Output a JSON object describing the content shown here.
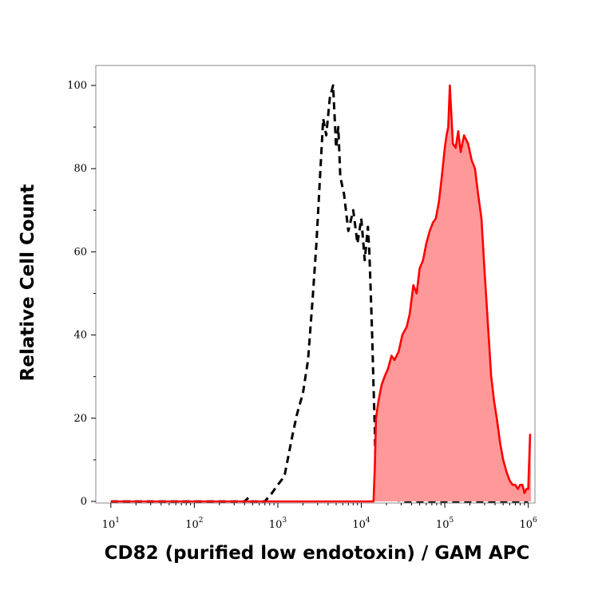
{
  "chart_data": {
    "type": "area",
    "title": "",
    "xlabel": "CD82 (purified low endotoxin) / GAM APC",
    "ylabel": "Relative Cell Count",
    "x_scale": "log",
    "xlim": [
      10,
      1000000
    ],
    "ylim": [
      0,
      100
    ],
    "grid": false,
    "legend": "none",
    "y_ticks": [
      {
        "value": 0,
        "label": "0"
      },
      {
        "value": 20,
        "label": "20"
      },
      {
        "value": 40,
        "label": "40"
      },
      {
        "value": 60,
        "label": "60"
      },
      {
        "value": 80,
        "label": "80"
      },
      {
        "value": 100,
        "label": "100"
      }
    ],
    "x_ticks": [
      {
        "value": 10,
        "base": "10",
        "exp": "1"
      },
      {
        "value": 100,
        "base": "10",
        "exp": "2"
      },
      {
        "value": 1000,
        "base": "10",
        "exp": "3"
      },
      {
        "value": 10000,
        "base": "10",
        "exp": "4"
      },
      {
        "value": 100000,
        "base": "10",
        "exp": "5"
      },
      {
        "value": 1000000,
        "base": "10",
        "exp": "6"
      }
    ],
    "series": [
      {
        "style": "dashed",
        "color": "#000000",
        "fill": "none",
        "x": [
          10,
          400,
          450,
          480,
          700,
          850,
          1000,
          1200,
          1500,
          1700,
          2000,
          2300,
          2600,
          2900,
          3200,
          3500,
          3800,
          4200,
          4600,
          5000,
          5300,
          5600,
          6200,
          7000,
          8000,
          9000,
          10000,
          11000,
          12000,
          12500,
          13000,
          13500,
          14000,
          14500,
          15000,
          30000,
          100000,
          1000000
        ],
        "y": [
          0,
          0,
          1,
          0,
          0,
          2,
          4,
          6,
          16,
          21,
          26,
          34,
          48,
          62,
          78,
          92,
          88,
          97,
          100,
          85,
          90,
          78,
          74,
          65,
          70,
          62,
          68,
          58,
          66,
          60,
          50,
          40,
          28,
          18,
          2,
          0,
          0,
          0
        ]
      },
      {
        "style": "solid",
        "color": "#ff0000",
        "fill": "#ff9999",
        "x": [
          10,
          14000,
          14500,
          15000,
          16000,
          17500,
          19000,
          21000,
          23000,
          25000,
          28000,
          31000,
          35000,
          38000,
          42000,
          46000,
          50000,
          55000,
          60000,
          66000,
          72000,
          78000,
          85000,
          92000,
          100000,
          105000,
          110000,
          115000,
          125000,
          135000,
          145000,
          155000,
          170000,
          190000,
          210000,
          230000,
          250000,
          275000,
          300000,
          330000,
          360000,
          390000,
          420000,
          460000,
          500000,
          550000,
          600000,
          650000,
          700000,
          750000,
          800000,
          850000,
          900000,
          950000,
          1000000,
          1050000,
          1080000
        ],
        "y": [
          0,
          0,
          8,
          20,
          24,
          28,
          30,
          32,
          35,
          34,
          36,
          40,
          42,
          45,
          52,
          50,
          56,
          58,
          62,
          65,
          67,
          68,
          72,
          78,
          85,
          88,
          90,
          100,
          86,
          85,
          89,
          84,
          88,
          86,
          82,
          80,
          74,
          68,
          55,
          42,
          30,
          24,
          20,
          14,
          10,
          7,
          5,
          4,
          4,
          3,
          4,
          4,
          2,
          3,
          3,
          16,
          16
        ]
      }
    ]
  }
}
